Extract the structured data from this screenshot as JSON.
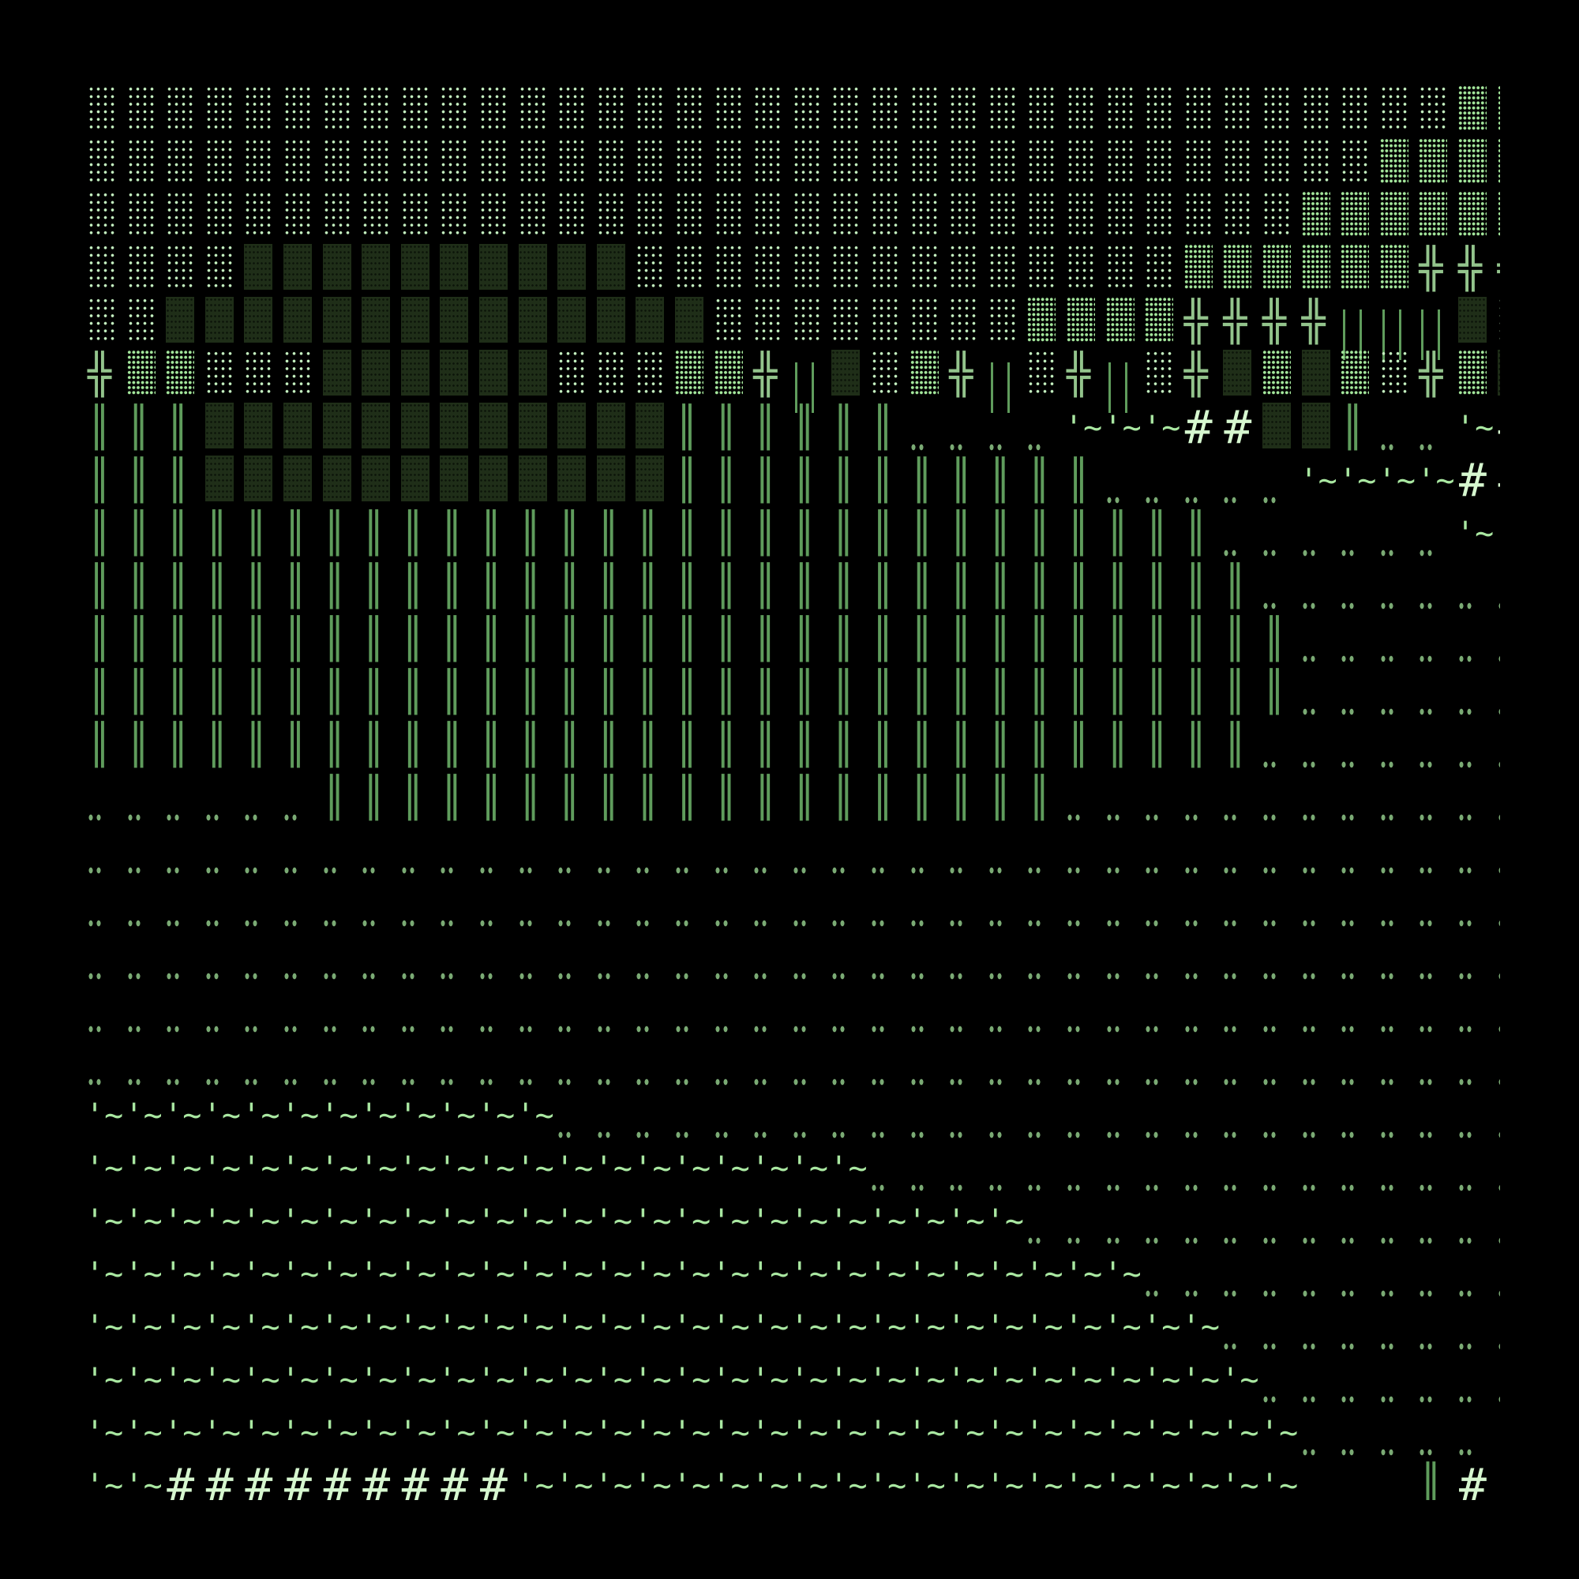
{
  "map": {
    "legend": {
      "L": {
        "name": "light-shade",
        "glyph": "░",
        "color": "#c6f3c2"
      },
      "M": {
        "name": "medium-shade",
        "glyph": "▒",
        "color": "#a4e79c"
      },
      "D": {
        "name": "dark-shade",
        "glyph": "▓",
        "color": "#1f2e18"
      },
      "X": {
        "name": "double-cross",
        "glyph": "╬",
        "color": "#93c48c"
      },
      "V": {
        "name": "double-vertical",
        "glyph": "║",
        "color": "#5f9c5c"
      },
      "P": {
        "name": "vertical-bars",
        "glyph": "| |",
        "color": "#5f9c5c"
      },
      "F": {
        "name": "floor-dots",
        "glyph": "‥",
        "color": "#7aaa74"
      },
      "W": {
        "name": "water",
        "glyph": "'~",
        "color": "#a9e7a1"
      },
      "H": {
        "name": "hash",
        "glyph": "#",
        "color": "#d6f7cf"
      },
      "Q": {
        "name": "quote",
        "glyph": "'",
        "color": "#a9e7a1"
      },
      " ": {
        "name": "empty",
        "glyph": " ",
        "color": "#000000"
      }
    },
    "rows": [
      "LLLLLLLLLLLLLLLLLLLLLLLLLLLLLLLLLLLMM",
      "LLLLLLLLLLLLLLLLLLLLLLLLLLLLLLLLLMMMM",
      "LLLLLLLLLLLLLLLLLLLLLLLLLLLLLLLMMMMMM",
      "LLLLDDDDDDDDDDLLLLLLLLLLLLLLMMMMMMXXX",
      "LLDDDDDDDDDDDDDDLLLLLLLLMMMMXXXXPPPDL",
      "XMMLLLDDDDDDLLLMMXPDLMXPLXPLXDMDMLXMD",
      "VVVDDDDDDDDDDDDVVVVVVFFFFWWWHHDDVFFWH",
      "VVVDDDDDDDDDDDDVVVVVVVVVVVFFFFFWWWWHH",
      "VVVVVVVVVVVVVVVVVVVVVVVVVVVVVFFFFFFWQ",
      "VVVVVVVVVVVVVVVVVVVVVVVVVVVVVVFFFFFFF",
      "VVVVVVVVVVVVVVVVVVVVVVVVVVVVVVVFFFFFF",
      "VVVVVVVVVVVVVVVVVVVVVVVVVVVVVVVFFFFFF",
      "VVVVVVVVVVVVVVVVVVVVVVVVVVVVVVFFFFFFF",
      "FFFFFFVVVVVVVVVVVVVVVVVVVFFFFFFFFFFFF",
      "FFFFFFFFFFFFFFFFFFFFFFFFFFFFFFFFFFFFF",
      "FFFFFFFFFFFFFFFFFFFFFFFFFFFFFFFFFFFFF",
      "FFFFFFFFFFFFFFFFFFFFFFFFFFFFFFFFFFFFF",
      "FFFFFFFFFFFFFFFFFFFFFFFFFFFFFFFFFFFFF",
      "FFFFFFFFFFFFFFFFFFFFFFFFFFFFFFFFFFFFF",
      "WWWWWWWWWWWWFFFFFFFFFFFFFFFFFFFFFFFFF",
      "WWWWWWWWWWWWWWWWWWWWFFFFFFFFFFFFFFFFF",
      "WWWWWWWWWWWWWWWWWWWWWWWWFFFFFFFFFFFFF",
      "WWWWWWWWWWWWWWWWWWWWWWWWWWWFFFFFFFFFF",
      "WWWWWWWWWWWWWWWWWWWWWWWWWWWWWFFFFFFFF",
      "WWWWWWWWWWWWWWWWWWWWWWWWWWWWWWFFFFFFF",
      "WWWWWWWWWWWWWWWWWWWWWWWWWWWWWWWFFFFFQ",
      "WWHHHHHHHHHWWWWWWWWWWWWWWWWWWWW   VHQ"
    ]
  }
}
